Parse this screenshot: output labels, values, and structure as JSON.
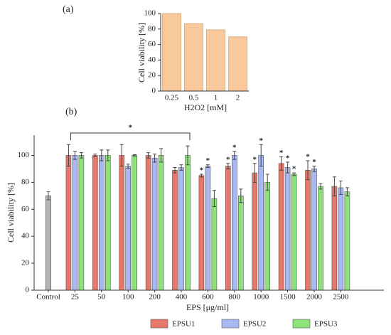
{
  "chart_data": [
    {
      "type": "bar",
      "panel_label": "(a)",
      "ylabel": "Cell viability [%]",
      "xlabel": "H2O2 [mM]",
      "categories": [
        "0.25",
        "0.5",
        "1",
        "2"
      ],
      "values": [
        100,
        87,
        79,
        70
      ],
      "color": "#f9c89b",
      "ylim": [
        0,
        100
      ],
      "yticks": [
        0,
        20,
        40,
        60,
        80,
        100
      ]
    },
    {
      "type": "grouped_bar",
      "panel_label": "(b)",
      "ylabel": "Cell viability [%]",
      "xlabel": "EPS [μg/ml]",
      "categories": [
        "Control",
        "25",
        "50",
        "100",
        "200",
        "400",
        "600",
        "800",
        "1000",
        "1500",
        "2000",
        "2500"
      ],
      "control": {
        "value": 70,
        "error": 3,
        "color": "#b5b5b5"
      },
      "series": [
        {
          "name": "EPSU1",
          "color": "#e8766b",
          "values": [
            null,
            100,
            100,
            100,
            100,
            89,
            85,
            92,
            87,
            94,
            89,
            77
          ],
          "errors": [
            null,
            8,
            1,
            8,
            2,
            2,
            1,
            2,
            7,
            5,
            7,
            7
          ],
          "marks": [
            null,
            null,
            null,
            null,
            null,
            null,
            "*",
            "*",
            "*",
            "*",
            "*",
            null
          ]
        },
        {
          "name": "EPSU2",
          "color": "#a9b8f0",
          "values": [
            null,
            100,
            100,
            92,
            98,
            91,
            92,
            100,
            100,
            91,
            90,
            76
          ],
          "errors": [
            null,
            3,
            4,
            1.5,
            3,
            2,
            1,
            3,
            8,
            4,
            2,
            5
          ],
          "marks": [
            null,
            null,
            null,
            null,
            null,
            null,
            "*",
            "*",
            "*",
            "*",
            "*",
            null
          ]
        },
        {
          "name": "EPSU3",
          "color": "#8ee27a",
          "values": [
            null,
            100,
            100,
            100,
            100,
            100,
            68,
            70,
            80,
            86,
            77,
            73
          ],
          "errors": [
            null,
            2,
            4,
            0.5,
            5,
            7,
            6,
            5,
            6,
            1,
            2,
            3
          ],
          "marks": [
            null,
            null,
            null,
            null,
            null,
            null,
            null,
            null,
            null,
            "*",
            null,
            null
          ]
        }
      ],
      "bracket": {
        "categories": [
          "25",
          "400"
        ],
        "label": "*"
      },
      "ylim": [
        0,
        115
      ],
      "yticks": [
        0,
        20,
        40,
        60,
        80,
        100
      ]
    }
  ]
}
